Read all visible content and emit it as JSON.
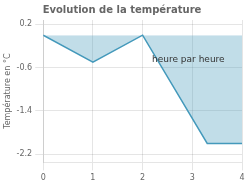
{
  "chart_data": {
    "type": "area",
    "title": "Evolution de la température",
    "xlabel": "heure par heure",
    "ylabel": "Température en °C",
    "x": [
      0,
      1,
      2,
      3.3,
      4
    ],
    "values": [
      0.0,
      -0.5,
      0.0,
      -2.0,
      -2.0
    ],
    "color": "#4499bb",
    "xlim": [
      0,
      4
    ],
    "xticks": [
      0,
      1,
      2,
      3,
      4
    ],
    "ylim": [
      -2.35,
      0.28
    ],
    "yticks": [
      0.2,
      -0.6,
      -1.4,
      -2.2
    ],
    "grid": true
  }
}
